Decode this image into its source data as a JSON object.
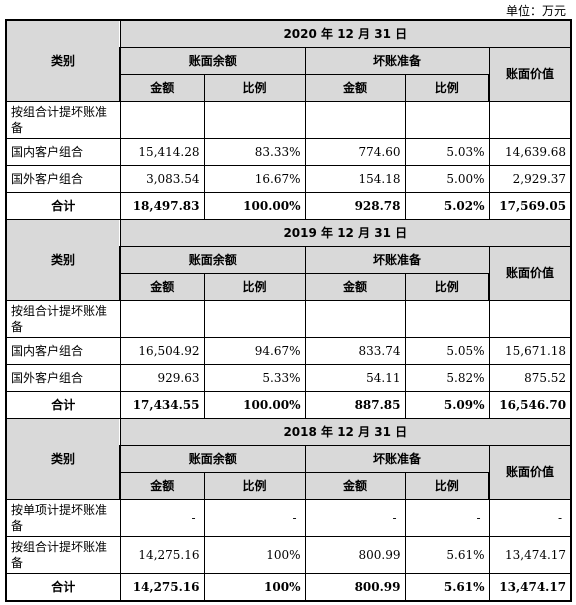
{
  "unit_label": "单位：万元",
  "headers": {
    "category": "类别",
    "book_balance": "账面余额",
    "bad_debt": "坏账准备",
    "book_value": "账面价值",
    "amount": "金额",
    "ratio": "比例"
  },
  "blocks": [
    {
      "date": "2020 年 12 月 31 日",
      "rows": [
        {
          "label": "按组合计提坏账准备",
          "bal": "",
          "bal_pct": "",
          "bd": "",
          "bd_pct": "",
          "value": ""
        },
        {
          "label": "国内客户组合",
          "bal": "15,414.28",
          "bal_pct": "83.33%",
          "bd": "774.60",
          "bd_pct": "5.03%",
          "value": "14,639.68"
        },
        {
          "label": "国外客户组合",
          "bal": "3,083.54",
          "bal_pct": "16.67%",
          "bd": "154.18",
          "bd_pct": "5.00%",
          "value": "2,929.37"
        }
      ],
      "total": {
        "label": "合计",
        "bal": "18,497.83",
        "bal_pct": "100.00%",
        "bd": "928.78",
        "bd_pct": "5.02%",
        "value": "17,569.05"
      }
    },
    {
      "date": "2019 年 12 月 31 日",
      "rows": [
        {
          "label": "按组合计提坏账准备",
          "bal": "",
          "bal_pct": "",
          "bd": "",
          "bd_pct": "",
          "value": ""
        },
        {
          "label": "国内客户组合",
          "bal": "16,504.92",
          "bal_pct": "94.67%",
          "bd": "833.74",
          "bd_pct": "5.05%",
          "value": "15,671.18"
        },
        {
          "label": "国外客户组合",
          "bal": "929.63",
          "bal_pct": "5.33%",
          "bd": "54.11",
          "bd_pct": "5.82%",
          "value": "875.52"
        }
      ],
      "total": {
        "label": "合计",
        "bal": "17,434.55",
        "bal_pct": "100.00%",
        "bd": "887.85",
        "bd_pct": "5.09%",
        "value": "16,546.70"
      }
    },
    {
      "date": "2018 年 12 月 31 日",
      "rows": [
        {
          "label": "按单项计提坏账准备",
          "bal": "-",
          "bal_pct": "-",
          "bd": "-",
          "bd_pct": "-",
          "value": "-"
        },
        {
          "label": "按组合计提坏账准备",
          "bal": "14,275.16",
          "bal_pct": "100%",
          "bd": "800.99",
          "bd_pct": "5.61%",
          "value": "13,474.17"
        }
      ],
      "total": {
        "label": "合计",
        "bal": "14,275.16",
        "bal_pct": "100%",
        "bd": "800.99",
        "bd_pct": "5.61%",
        "value": "13,474.17"
      }
    }
  ]
}
